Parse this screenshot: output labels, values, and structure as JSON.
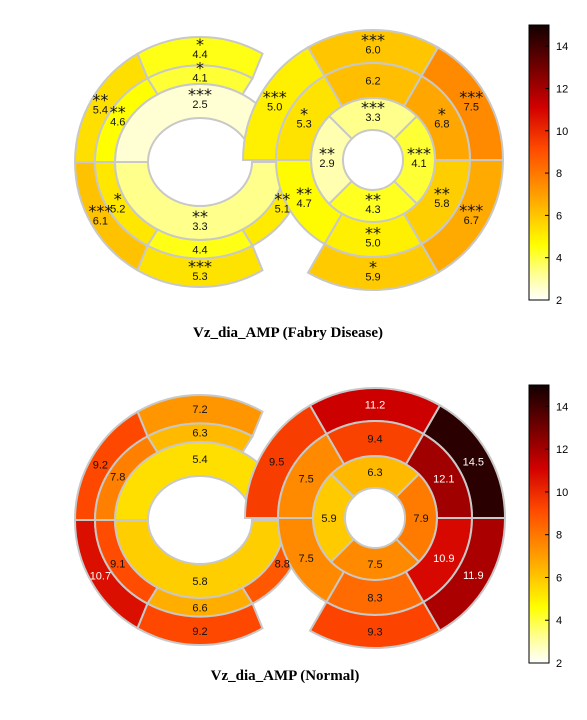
{
  "colorbar": {
    "ticks": [
      "14",
      "12",
      "10",
      "8",
      "6",
      "4",
      "2"
    ],
    "vmin": 2,
    "vmax": 15
  },
  "panels": [
    {
      "caption": "Vz_dia_AMP (Fabry Disease)",
      "ellipse_segments": [
        {
          "value": "4.4",
          "stars": "*"
        },
        {
          "value": "4.1",
          "stars": "*"
        },
        {
          "value": "2.5",
          "stars": "***"
        },
        {
          "value": "5.4",
          "stars": "**"
        },
        {
          "value": "4.6",
          "stars": "**"
        },
        {
          "value": "6.1",
          "stars": "***"
        },
        {
          "value": "5.2",
          "stars": "*"
        },
        {
          "value": "3.3",
          "stars": "**"
        },
        {
          "value": "4.4",
          "stars": ""
        },
        {
          "value": "5.3",
          "stars": "***"
        },
        {
          "value": "5.1",
          "stars": "**"
        }
      ],
      "circle_segments": [
        {
          "value": "6.0",
          "stars": "***"
        },
        {
          "value": "6.2",
          "stars": ""
        },
        {
          "value": "3.3",
          "stars": "***"
        },
        {
          "value": "5.0",
          "stars": "***"
        },
        {
          "value": "5.3",
          "stars": "*"
        },
        {
          "value": "2.9",
          "stars": "**"
        },
        {
          "value": "4.7",
          "stars": "**"
        },
        {
          "value": "7.5",
          "stars": "***"
        },
        {
          "value": "6.8",
          "stars": "*"
        },
        {
          "value": "4.1",
          "stars": "***"
        },
        {
          "value": "4.3",
          "stars": "**"
        },
        {
          "value": "5.0",
          "stars": "**"
        },
        {
          "value": "5.9",
          "stars": "*"
        },
        {
          "value": "5.8",
          "stars": "**"
        },
        {
          "value": "6.7",
          "stars": "***"
        }
      ]
    },
    {
      "caption": "Vz_dia_AMP (Normal)",
      "ellipse_segments": [
        {
          "value": "7.2",
          "stars": ""
        },
        {
          "value": "6.3",
          "stars": ""
        },
        {
          "value": "5.4",
          "stars": ""
        },
        {
          "value": "9.2",
          "stars": ""
        },
        {
          "value": "7.8",
          "stars": ""
        },
        {
          "value": "10.7",
          "stars": ""
        },
        {
          "value": "9.1",
          "stars": ""
        },
        {
          "value": "5.8",
          "stars": ""
        },
        {
          "value": "6.6",
          "stars": ""
        },
        {
          "value": "9.2",
          "stars": ""
        },
        {
          "value": "8.8",
          "stars": ""
        }
      ],
      "circle_segments": [
        {
          "value": "11.2",
          "stars": ""
        },
        {
          "value": "9.4",
          "stars": ""
        },
        {
          "value": "6.3",
          "stars": ""
        },
        {
          "value": "9.5",
          "stars": ""
        },
        {
          "value": "7.5",
          "stars": ""
        },
        {
          "value": "5.9",
          "stars": ""
        },
        {
          "value": "7.5",
          "stars": ""
        },
        {
          "value": "14.5",
          "stars": ""
        },
        {
          "value": "12.1",
          "stars": ""
        },
        {
          "value": "7.9",
          "stars": ""
        },
        {
          "value": "7.5",
          "stars": ""
        },
        {
          "value": "8.3",
          "stars": ""
        },
        {
          "value": "9.3",
          "stars": ""
        },
        {
          "value": "10.9",
          "stars": ""
        },
        {
          "value": "11.9",
          "stars": ""
        }
      ]
    }
  ]
}
